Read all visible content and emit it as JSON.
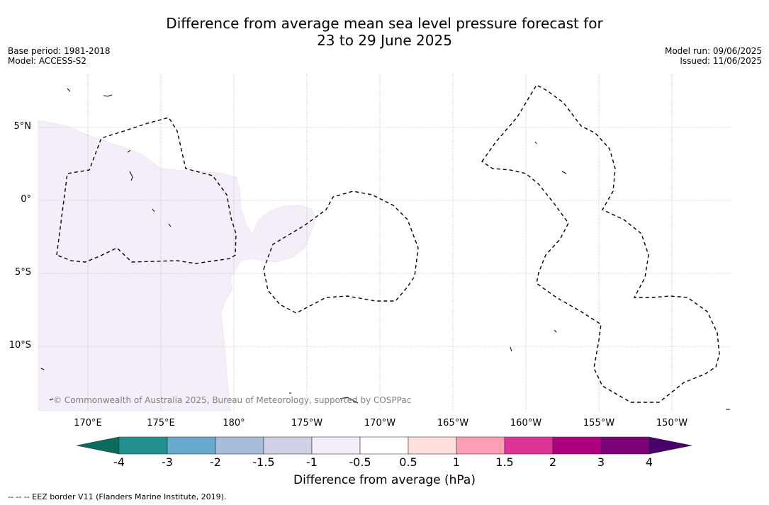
{
  "title_line1": "Difference from average mean sea level pressure forecast for",
  "title_line2": "23 to 29 June 2025",
  "base_period": "Base period: 1981-2018",
  "model": "Model: ACCESS-S2",
  "model_run": "Model run: 09/06/2025",
  "issued": "Issued: 11/06/2025",
  "copyright": "© Commonwealth of Australia 2025, Bureau of Meteorology, supported by COSPPac",
  "lat_labels": [
    "5°N",
    "0°",
    "5°S",
    "10°S"
  ],
  "lon_labels": [
    "170°E",
    "175°E",
    "180°",
    "175°W",
    "170°W",
    "165°W",
    "160°W",
    "155°W",
    "150°W"
  ],
  "colorbar": {
    "title": "Difference from average (hPa)",
    "ticks": [
      "-4",
      "-3",
      "-2",
      "-1.5",
      "-1",
      "-0.5",
      "0.5",
      "1",
      "1.5",
      "2",
      "3",
      "4"
    ],
    "colors": {
      "below_min": "#0b6b5e",
      "bins": [
        "#22908f",
        "#67a9cf",
        "#a6bddb",
        "#d0d1e6",
        "#f3eef7",
        "#ffffff",
        "#fde0dd",
        "#fa9fb5",
        "#dd3497",
        "#ae017e",
        "#7a0177"
      ],
      "above_max": "#49006a"
    }
  },
  "eez_note": "--  --  -- EEZ border V11 (Flanders Marine Institute, 2019).",
  "anomaly_fill_color": "#f3eef7"
}
